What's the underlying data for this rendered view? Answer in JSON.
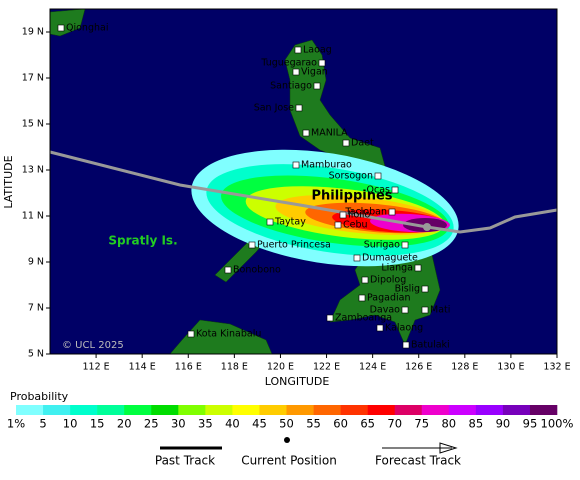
{
  "map": {
    "xlim": [
      110,
      132
    ],
    "ylim": [
      5,
      20
    ],
    "xticks": [
      {
        "value": 112,
        "label": "112 E"
      },
      {
        "value": 114,
        "label": "114 E"
      },
      {
        "value": 116,
        "label": "116 E"
      },
      {
        "value": 118,
        "label": "118 E"
      },
      {
        "value": 120,
        "label": "120 E"
      },
      {
        "value": 122,
        "label": "122 E"
      },
      {
        "value": 124,
        "label": "124 E"
      },
      {
        "value": 126,
        "label": "126 E"
      },
      {
        "value": 128,
        "label": "128 E"
      },
      {
        "value": 130,
        "label": "130 E"
      },
      {
        "value": 132,
        "label": "132 E"
      }
    ],
    "yticks": [
      {
        "value": 5,
        "label": "5 N"
      },
      {
        "value": 7,
        "label": "7 N"
      },
      {
        "value": 9,
        "label": "9 N"
      },
      {
        "value": 11,
        "label": "11 N"
      },
      {
        "value": 13,
        "label": "13 N"
      },
      {
        "value": 15,
        "label": "15 N"
      },
      {
        "value": 17,
        "label": "17 N"
      },
      {
        "value": 19,
        "label": "19 N"
      }
    ],
    "xlabel": "LONGITUDE",
    "ylabel": "LATITUDE",
    "copyright": "© UCL 2025",
    "regions": [
      "Philippines",
      "Spratly Is."
    ],
    "cities": [
      "Qionghai",
      "Laoag",
      "Tuguegarao",
      "Vigan",
      "Santiago",
      "San Jose",
      "MANILA",
      "Daet",
      "Mamburao",
      "Sorsogon",
      "Ocas",
      "Tacloban",
      "Iloilo",
      "Cebu",
      "Taytay",
      "Surigao",
      "Dumaguete",
      "Puerto Princesa",
      "Lianga",
      "Bonobono",
      "Dipolog",
      "Bislig",
      "Pagadian",
      "Davao",
      "Mati",
      "Zamboanga",
      "Kota Kinabalu",
      "Kalaong",
      "Batulaki"
    ]
  },
  "legend": {
    "title": "Probability",
    "scale_labels": [
      "1%",
      "5",
      "10",
      "15",
      "20",
      "25",
      "30",
      "35",
      "40",
      "45",
      "50",
      "55",
      "60",
      "65",
      "70",
      "75",
      "80",
      "85",
      "90",
      "95",
      "100%"
    ],
    "scale_colors": [
      "#80ffff",
      "#40f0f0",
      "#00ffcc",
      "#00ff99",
      "#00ff40",
      "#00dd00",
      "#80ff00",
      "#ccff00",
      "#ffff00",
      "#ffcc00",
      "#ff9900",
      "#ff6600",
      "#ff3300",
      "#ff0000",
      "#dd0066",
      "#ee00cc",
      "#cc00ff",
      "#9900ff",
      "#7700bb",
      "#660066"
    ],
    "track": [
      "Past Track",
      "Current Position",
      "Forecast Track"
    ]
  }
}
